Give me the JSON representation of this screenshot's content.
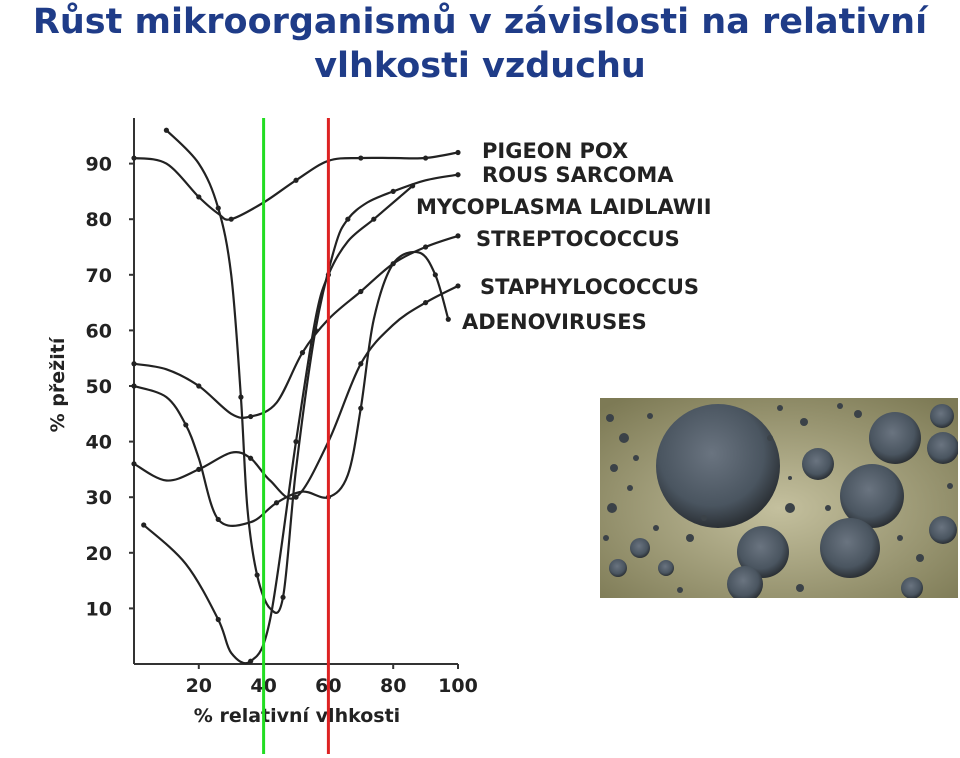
{
  "title": {
    "line1": "Růst mikroorganismů v závislosti na relativní",
    "line2": "vlhkosti vzduchu"
  },
  "photo": {
    "subject": "mold-colonies-photo",
    "colors": {
      "background": "#a8a47c",
      "colony": "#4a5560",
      "edge": "#2b3035"
    }
  },
  "chart_data": {
    "type": "line",
    "xlabel": "% relativní vlhkosti",
    "ylabel": "% přežití",
    "xlim": [
      0,
      100
    ],
    "ylim": [
      0,
      100
    ],
    "xticks": [
      20,
      40,
      60,
      80,
      100
    ],
    "yticks": [
      10,
      20,
      30,
      40,
      50,
      60,
      70,
      80,
      90
    ],
    "grid": false,
    "legend": "labels at line ends, right",
    "series": [
      {
        "name": "PIGEON POX",
        "color": "#222222",
        "x": [
          0,
          10,
          20,
          26,
          30,
          40,
          50,
          60,
          70,
          80,
          90,
          100
        ],
        "y": [
          91,
          90,
          84,
          81,
          80,
          83,
          87,
          90.5,
          91,
          91,
          91,
          92
        ]
      },
      {
        "name": "ROUS SARCOMA",
        "color": "#222222",
        "x": [
          10,
          20,
          26,
          30,
          33,
          35,
          38,
          42,
          46,
          50,
          56,
          62,
          66,
          72,
          80,
          90,
          100
        ],
        "y": [
          96,
          90,
          82,
          70,
          48,
          28,
          16,
          10,
          12,
          35,
          60,
          75,
          80,
          83,
          85,
          87,
          88
        ]
      },
      {
        "name": "MYCOPLASMA LAIDLAWII",
        "color": "#222222",
        "x": [
          3,
          16,
          26,
          30,
          36,
          42,
          50,
          56,
          60,
          66,
          74,
          82,
          86
        ],
        "y": [
          25,
          18,
          8,
          2,
          0.5,
          8,
          40,
          62,
          70,
          76,
          80,
          84,
          86
        ]
      },
      {
        "name": "STREPTOCOCCUS",
        "color": "#222222",
        "x": [
          0,
          10,
          20,
          30,
          36,
          44,
          52,
          60,
          70,
          80,
          90,
          100
        ],
        "y": [
          54,
          53,
          50,
          45,
          44.5,
          47,
          56,
          62,
          67,
          72,
          75,
          77
        ]
      },
      {
        "name": "STAPHYLOCOCCUS",
        "color": "#222222",
        "x": [
          0,
          10,
          20,
          30,
          36,
          42,
          50,
          60,
          70,
          80,
          90,
          100
        ],
        "y": [
          36,
          33,
          35,
          38,
          37,
          33,
          30,
          40,
          54,
          61,
          65,
          68
        ]
      },
      {
        "name": "ADENOVIRUSES",
        "color": "#222222",
        "x": [
          0,
          10,
          16,
          20,
          26,
          36,
          44,
          52,
          60,
          66,
          70,
          74,
          80,
          88,
          93,
          97
        ],
        "y": [
          50,
          48,
          43,
          37,
          26,
          25.5,
          29,
          31,
          30,
          34,
          46,
          62,
          72,
          74,
          70,
          62
        ]
      }
    ],
    "reference_lines": [
      {
        "x": 40,
        "color": "#22dd22"
      },
      {
        "x": 60,
        "color": "#dd2222"
      }
    ]
  }
}
